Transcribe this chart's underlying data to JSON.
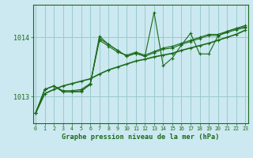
{
  "title": "Graphe pression niveau de la mer (hPa)",
  "background_color": "#cce8f0",
  "plot_bg_color": "#cce8f0",
  "grid_color": "#99cccc",
  "line_color": "#1a6b1a",
  "x_ticks": [
    0,
    1,
    2,
    3,
    4,
    5,
    6,
    7,
    8,
    9,
    10,
    11,
    12,
    13,
    14,
    15,
    16,
    17,
    18,
    19,
    20,
    21,
    22,
    23
  ],
  "yticks": [
    1013,
    1014
  ],
  "ylim": [
    1012.55,
    1014.55
  ],
  "xlim": [
    -0.3,
    23.3
  ],
  "series_smooth": [
    1012.72,
    1013.05,
    1013.12,
    1013.18,
    1013.22,
    1013.26,
    1013.3,
    1013.38,
    1013.45,
    1013.5,
    1013.55,
    1013.6,
    1013.63,
    1013.67,
    1013.7,
    1013.73,
    1013.78,
    1013.82,
    1013.86,
    1013.9,
    1013.95,
    1014.0,
    1014.05,
    1014.12
  ],
  "series_med": [
    1012.72,
    1013.12,
    1013.18,
    1013.1,
    1013.1,
    1013.12,
    1013.22,
    1013.95,
    1013.85,
    1013.75,
    1013.7,
    1013.75,
    1013.7,
    1013.76,
    1013.82,
    1013.85,
    1013.9,
    1013.95,
    1014.0,
    1014.05,
    1014.05,
    1014.1,
    1014.15,
    1014.18
  ],
  "series_med2": [
    1012.72,
    1013.12,
    1013.18,
    1013.08,
    1013.08,
    1013.1,
    1013.2,
    1013.98,
    1013.88,
    1013.78,
    1013.68,
    1013.73,
    1013.68,
    1013.74,
    1013.8,
    1013.82,
    1013.88,
    1013.93,
    1013.98,
    1014.03,
    1014.03,
    1014.08,
    1014.13,
    1014.16
  ],
  "series_jagged": [
    1012.72,
    1013.12,
    1013.18,
    1013.08,
    1013.08,
    1013.08,
    1013.22,
    1014.02,
    1013.88,
    1013.78,
    1013.68,
    1013.73,
    1013.68,
    1014.42,
    1013.52,
    1013.65,
    1013.87,
    1014.07,
    1013.72,
    1013.72,
    1014.02,
    1014.1,
    1014.15,
    1014.2
  ]
}
